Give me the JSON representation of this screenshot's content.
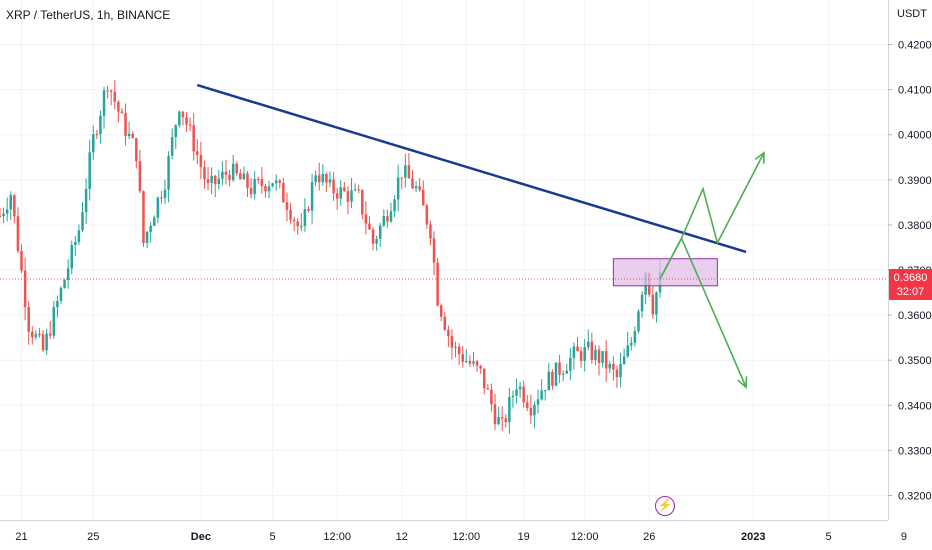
{
  "header": {
    "symbol_title": "XRP / TetherUS, 1h, BINANCE",
    "currency": "USDT"
  },
  "price_badge": {
    "price": "0.3680",
    "countdown": "32:07",
    "color": "#f23645"
  },
  "event_icon": {
    "name": "lightning-icon",
    "glyph": "⚡",
    "color": "#9c27b0"
  },
  "colors": {
    "up": "#26a69a",
    "down": "#ef5350",
    "trendline": "#1a3a8f",
    "projection": "#4caf50",
    "zone_fill": "#e1bee7",
    "zone_border": "#9c27b0",
    "grid": "#f0f3fa"
  },
  "chart_data": {
    "type": "candlestick",
    "title": "XRP / TetherUS, 1h, BINANCE",
    "ylabel": "USDT",
    "ylim": [
      0.315,
      0.425
    ],
    "y_ticks": [
      "0.4200",
      "0.4100",
      "0.4000",
      "0.3900",
      "0.3800",
      "0.3700",
      "0.3600",
      "0.3500",
      "0.3400",
      "0.3300",
      "0.3200"
    ],
    "x_ticks": [
      "21",
      "25",
      "Dec",
      "5",
      "12:00",
      "12",
      "12:00",
      "19",
      "12:00",
      "26",
      "2023",
      "5",
      "9"
    ],
    "x_ticks_bold": [
      "Dec",
      "2023"
    ],
    "grid": true,
    "price_path_points": [
      {
        "i": 0,
        "p": 0.382
      },
      {
        "i": 3,
        "p": 0.387
      },
      {
        "i": 8,
        "p": 0.358
      },
      {
        "i": 12,
        "p": 0.352
      },
      {
        "i": 18,
        "p": 0.368
      },
      {
        "i": 22,
        "p": 0.379
      },
      {
        "i": 26,
        "p": 0.399
      },
      {
        "i": 30,
        "p": 0.412
      },
      {
        "i": 34,
        "p": 0.403
      },
      {
        "i": 38,
        "p": 0.396
      },
      {
        "i": 40,
        "p": 0.376
      },
      {
        "i": 42,
        "p": 0.381
      },
      {
        "i": 46,
        "p": 0.39
      },
      {
        "i": 50,
        "p": 0.407
      },
      {
        "i": 54,
        "p": 0.398
      },
      {
        "i": 58,
        "p": 0.388
      },
      {
        "i": 64,
        "p": 0.392
      },
      {
        "i": 70,
        "p": 0.388
      },
      {
        "i": 76,
        "p": 0.39
      },
      {
        "i": 80,
        "p": 0.385
      },
      {
        "i": 84,
        "p": 0.378
      },
      {
        "i": 88,
        "p": 0.392
      },
      {
        "i": 92,
        "p": 0.388
      },
      {
        "i": 96,
        "p": 0.387
      },
      {
        "i": 100,
        "p": 0.386
      },
      {
        "i": 104,
        "p": 0.376
      },
      {
        "i": 108,
        "p": 0.383
      },
      {
        "i": 112,
        "p": 0.392
      },
      {
        "i": 116,
        "p": 0.388
      },
      {
        "i": 120,
        "p": 0.379
      },
      {
        "i": 122,
        "p": 0.364
      },
      {
        "i": 126,
        "p": 0.353
      },
      {
        "i": 130,
        "p": 0.35
      },
      {
        "i": 134,
        "p": 0.347
      },
      {
        "i": 138,
        "p": 0.338
      },
      {
        "i": 140,
        "p": 0.335
      },
      {
        "i": 144,
        "p": 0.345
      },
      {
        "i": 148,
        "p": 0.34
      },
      {
        "i": 152,
        "p": 0.345
      },
      {
        "i": 156,
        "p": 0.348
      },
      {
        "i": 160,
        "p": 0.351
      },
      {
        "i": 164,
        "p": 0.352
      },
      {
        "i": 168,
        "p": 0.35
      },
      {
        "i": 172,
        "p": 0.346
      },
      {
        "i": 176,
        "p": 0.354
      },
      {
        "i": 180,
        "p": 0.37
      },
      {
        "i": 182,
        "p": 0.362
      },
      {
        "i": 184,
        "p": 0.368
      }
    ],
    "last_price": 0.368,
    "trendline": {
      "from": {
        "i": 55,
        "p": 0.411
      },
      "to": {
        "i": 208,
        "p": 0.374
      }
    },
    "resistance_zone": {
      "from_i": 171,
      "to_i": 200,
      "p_top": 0.3725,
      "p_bottom": 0.3665
    },
    "projection_up": [
      {
        "i": 184,
        "p": 0.368
      },
      {
        "i": 190,
        "p": 0.377
      },
      {
        "i": 196,
        "p": 0.388
      },
      {
        "i": 200,
        "p": 0.376
      },
      {
        "i": 213,
        "p": 0.396
      }
    ],
    "projection_down": [
      {
        "i": 184,
        "p": 0.368
      },
      {
        "i": 190,
        "p": 0.377
      },
      {
        "i": 208,
        "p": 0.344
      }
    ]
  }
}
